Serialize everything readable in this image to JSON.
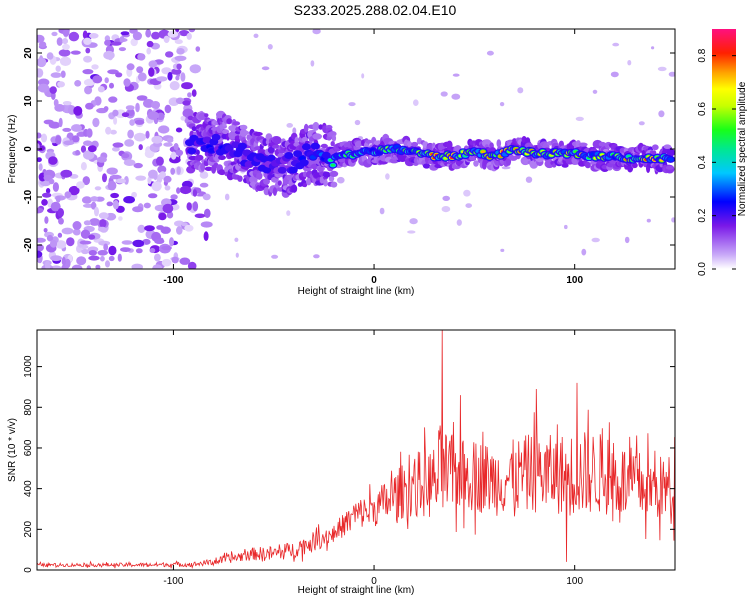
{
  "title": "S233.2025.288.02.04.E10",
  "chart_data": [
    {
      "type": "heatmap",
      "xlabel": "Height of straight line (km)",
      "ylabel": "Frequency (Hz)",
      "xlim": [
        -168,
        150
      ],
      "ylim": [
        -25,
        25
      ],
      "x_ticks": [
        -100,
        0,
        100
      ],
      "y_ticks": [
        -20,
        -10,
        0,
        10,
        20
      ],
      "colorbar": {
        "label": "Normalized spectral amplitude",
        "range": [
          0,
          0.9
        ],
        "ticks": [
          0,
          0.2,
          0.4,
          0.6,
          0.8
        ],
        "tick_labels": [
          "0.0",
          "0.2",
          "0.4",
          "0.6",
          "0.8"
        ]
      },
      "ridge": {
        "x": [
          -92,
          -85,
          -75,
          -65,
          -55,
          -45,
          -38,
          -30,
          -20,
          -10,
          0,
          10,
          20,
          30,
          40,
          50,
          60,
          70,
          80,
          90,
          100,
          110,
          120,
          130,
          140,
          148
        ],
        "freq": [
          1,
          2,
          1,
          -1,
          -3,
          -4,
          -2,
          -1,
          -1.5,
          -1,
          -0.5,
          0,
          -0.5,
          -1.5,
          -1.5,
          -0.5,
          -1.5,
          0,
          -1,
          -1,
          -1,
          -1.5,
          -1.5,
          -2,
          -2,
          -2
        ],
        "amplitude": [
          0.25,
          0.3,
          0.3,
          0.25,
          0.25,
          0.22,
          0.3,
          0.35,
          0.45,
          0.55,
          0.6,
          0.65,
          0.6,
          0.85,
          0.8,
          0.7,
          0.85,
          0.75,
          0.7,
          0.65,
          0.85,
          0.7,
          0.65,
          0.8,
          0.8,
          0.5
        ]
      },
      "noise_region": {
        "x": [
          -168,
          -80
        ],
        "freq": [
          -25,
          25
        ],
        "amplitude": [
          0.02,
          0.1
        ]
      }
    },
    {
      "type": "line",
      "xlabel": "Height of straight line (km)",
      "ylabel": "SNR (10 * v/v)",
      "xlim": [
        -168,
        150
      ],
      "ylim": [
        0,
        1180
      ],
      "x_ticks": [
        -100,
        0,
        100
      ],
      "y_ticks": [
        0,
        200,
        400,
        600,
        800,
        1000
      ],
      "color": "#e8282a",
      "envelope": {
        "x": [
          -168,
          -120,
          -90,
          -80,
          -70,
          -60,
          -50,
          -40,
          -30,
          -20,
          -13,
          -10,
          0,
          10,
          20,
          30,
          33,
          40,
          50,
          60,
          70,
          80,
          90,
          100,
          110,
          120,
          130,
          140,
          150
        ],
        "mean": [
          25,
          25,
          28,
          40,
          60,
          80,
          80,
          100,
          140,
          180,
          240,
          270,
          300,
          360,
          420,
          430,
          470,
          460,
          470,
          440,
          460,
          480,
          470,
          470,
          480,
          450,
          420,
          400,
          400
        ],
        "amp": [
          10,
          12,
          15,
          20,
          30,
          40,
          50,
          50,
          60,
          60,
          80,
          90,
          110,
          150,
          200,
          230,
          320,
          220,
          230,
          220,
          230,
          250,
          240,
          270,
          260,
          240,
          220,
          200,
          220
        ]
      },
      "peaks": [
        {
          "x": 34,
          "y": 1180
        },
        {
          "x": 43,
          "y": 860
        },
        {
          "x": 81,
          "y": 890
        },
        {
          "x": 101,
          "y": 920
        },
        {
          "x": 96,
          "y": 40
        }
      ]
    }
  ]
}
